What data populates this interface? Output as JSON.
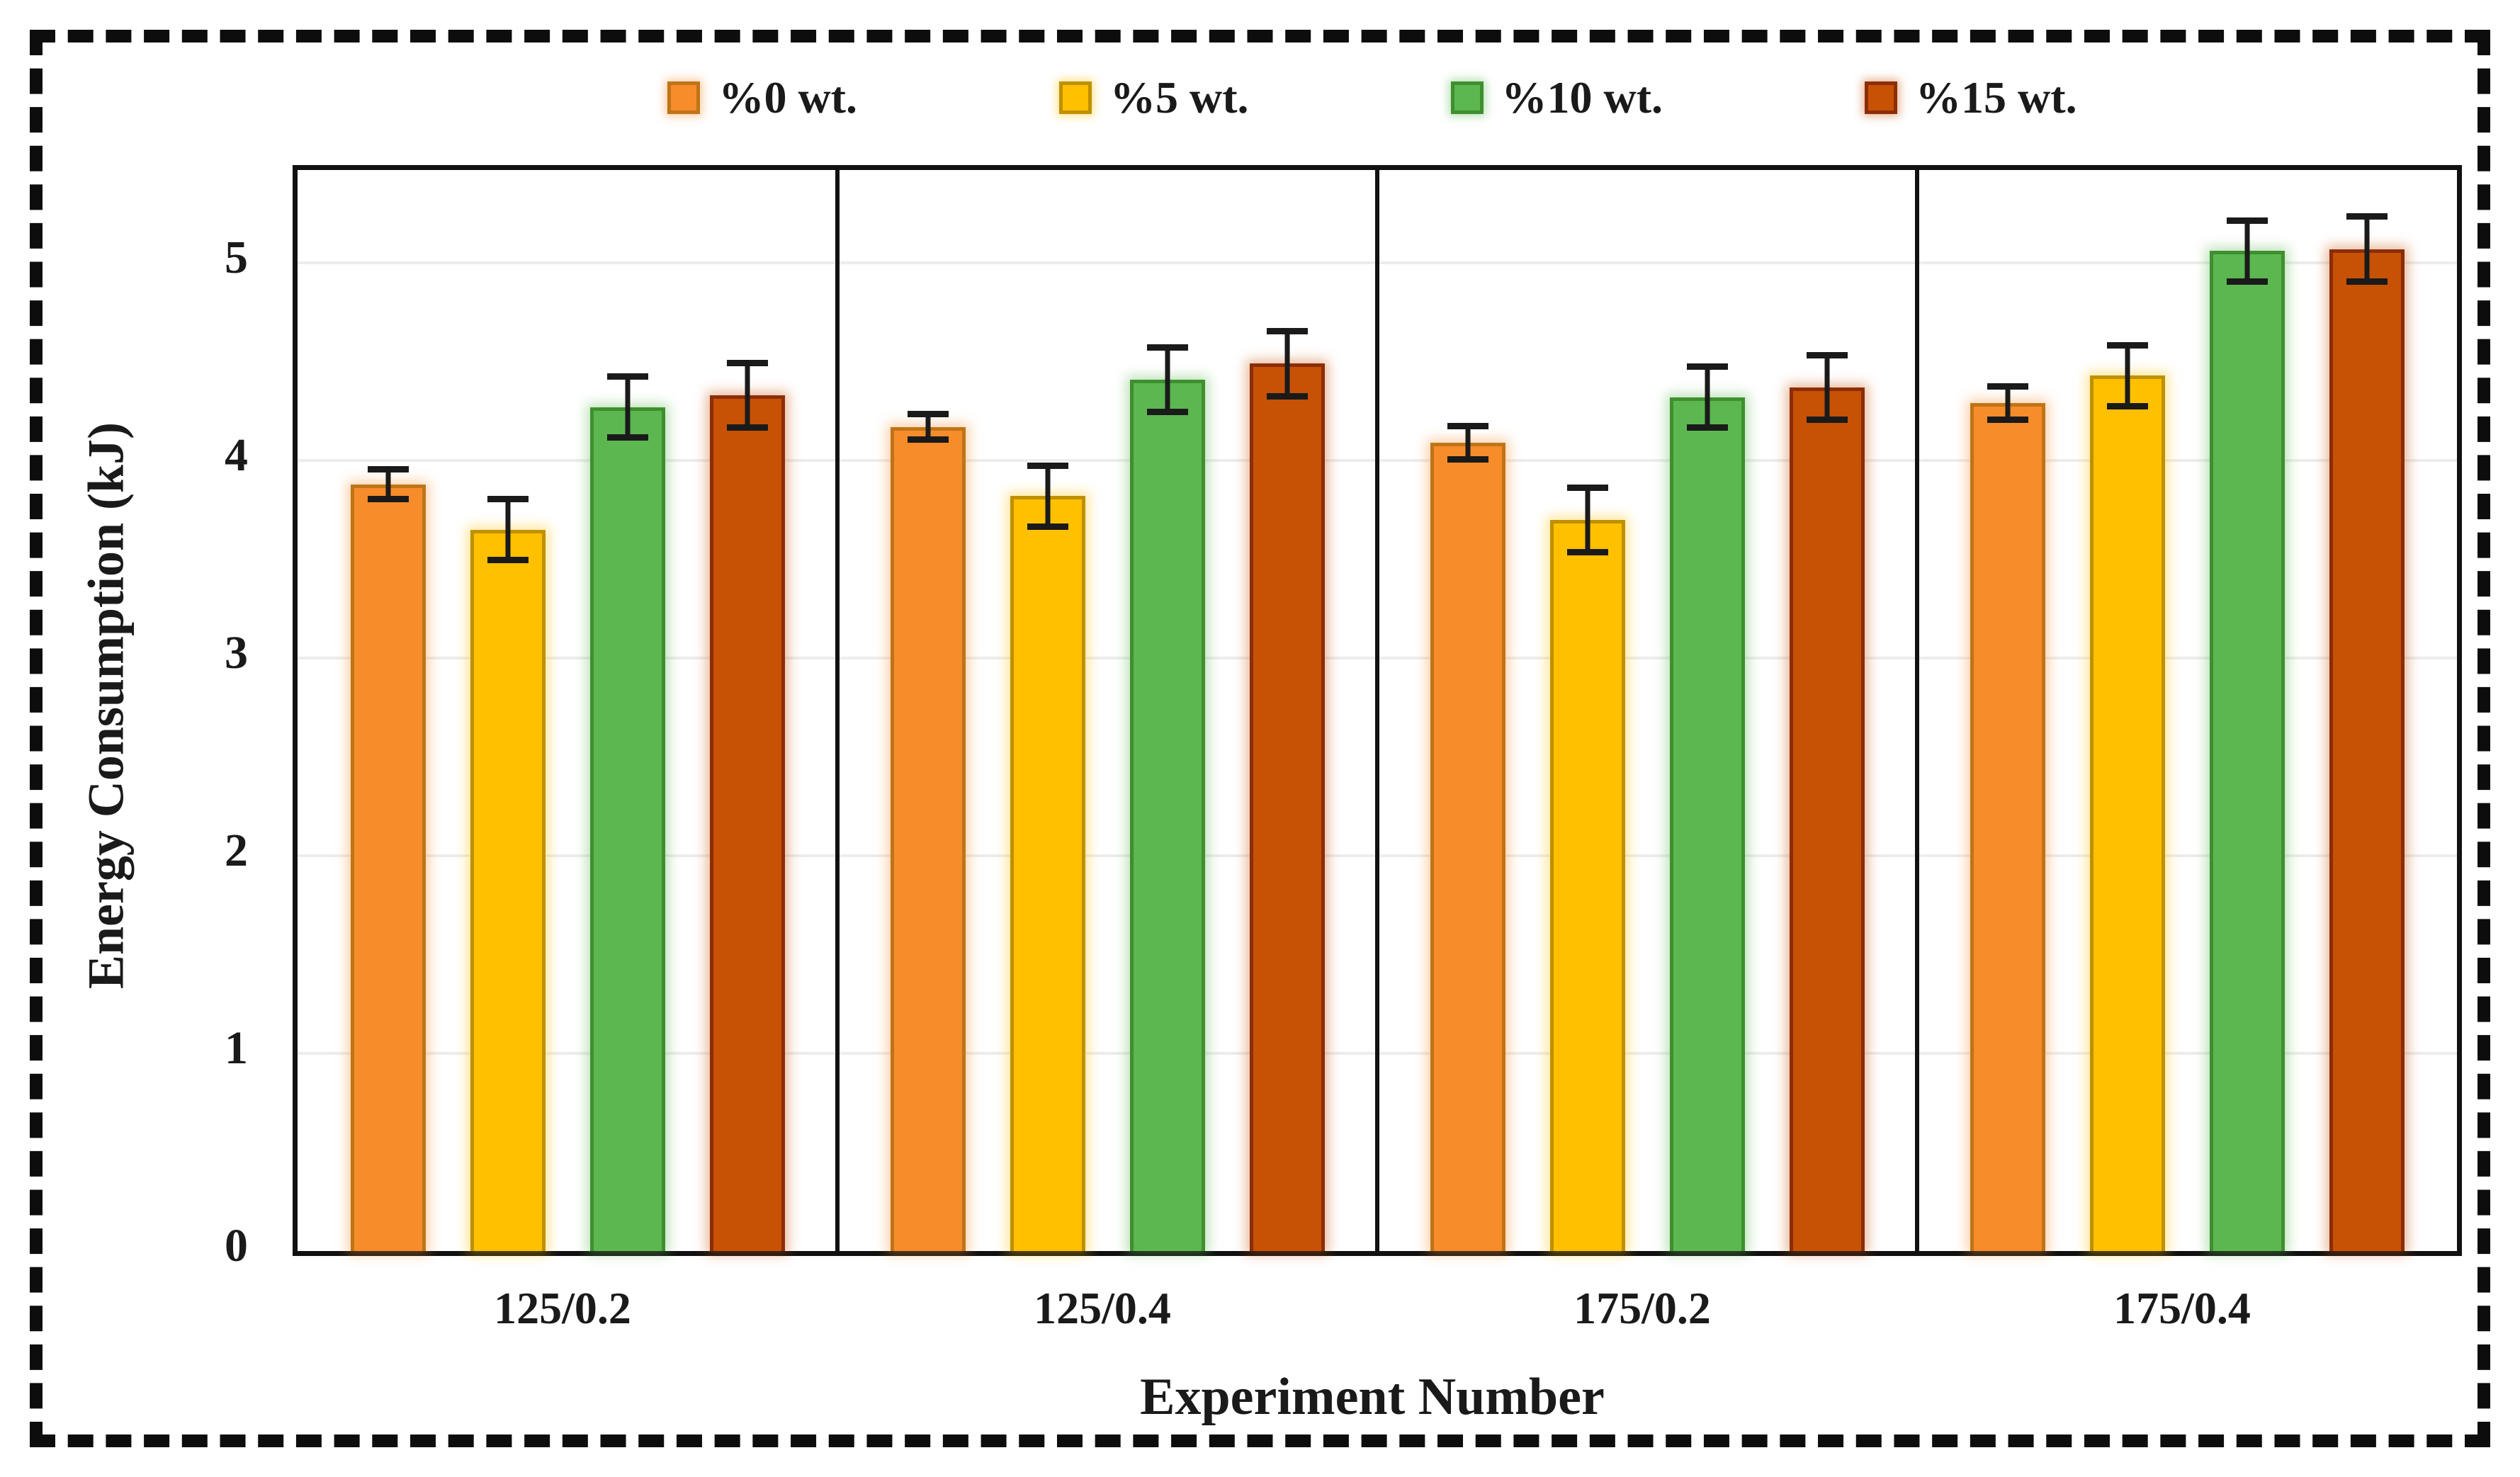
{
  "figure": {
    "background": "#ffffff",
    "frame_border_color": "#0d0d0d"
  },
  "chart_data": {
    "type": "bar",
    "title": "",
    "xlabel": "Experiment Number",
    "ylabel": "Energy Consumption (kJ)",
    "ylim": [
      0,
      5.47
    ],
    "yticks": [
      0,
      1,
      2,
      3,
      4,
      5
    ],
    "grid": true,
    "legend_position": "top",
    "categories": [
      "125/0.2",
      "125/0.4",
      "175/0.2",
      "175/0.4"
    ],
    "series": [
      {
        "name": "%0 wt.",
        "fill": "#F78C2B",
        "border": "#BF7417",
        "values": [
          3.88,
          4.17,
          4.09,
          4.29
        ],
        "errors": [
          0.09,
          0.08,
          0.1,
          0.1
        ]
      },
      {
        "name": "%5 wt.",
        "fill": "#FFC000",
        "border": "#BF9000",
        "values": [
          3.65,
          3.82,
          3.7,
          4.43
        ],
        "errors": [
          0.17,
          0.17,
          0.18,
          0.17
        ]
      },
      {
        "name": "%10 wt.",
        "fill": "#5CB750",
        "border": "#3F8F2F",
        "values": [
          4.27,
          4.41,
          4.32,
          5.06
        ],
        "errors": [
          0.17,
          0.18,
          0.17,
          0.17
        ]
      },
      {
        "name": "%15 wt.",
        "fill": "#C75104",
        "border": "#8C2D09",
        "values": [
          4.33,
          4.49,
          4.37,
          5.07
        ],
        "errors": [
          0.18,
          0.18,
          0.18,
          0.18
        ]
      }
    ],
    "error_bar_color": "#1a1a1a",
    "gridline_color": "#ededed",
    "axis_color": "#111111"
  }
}
